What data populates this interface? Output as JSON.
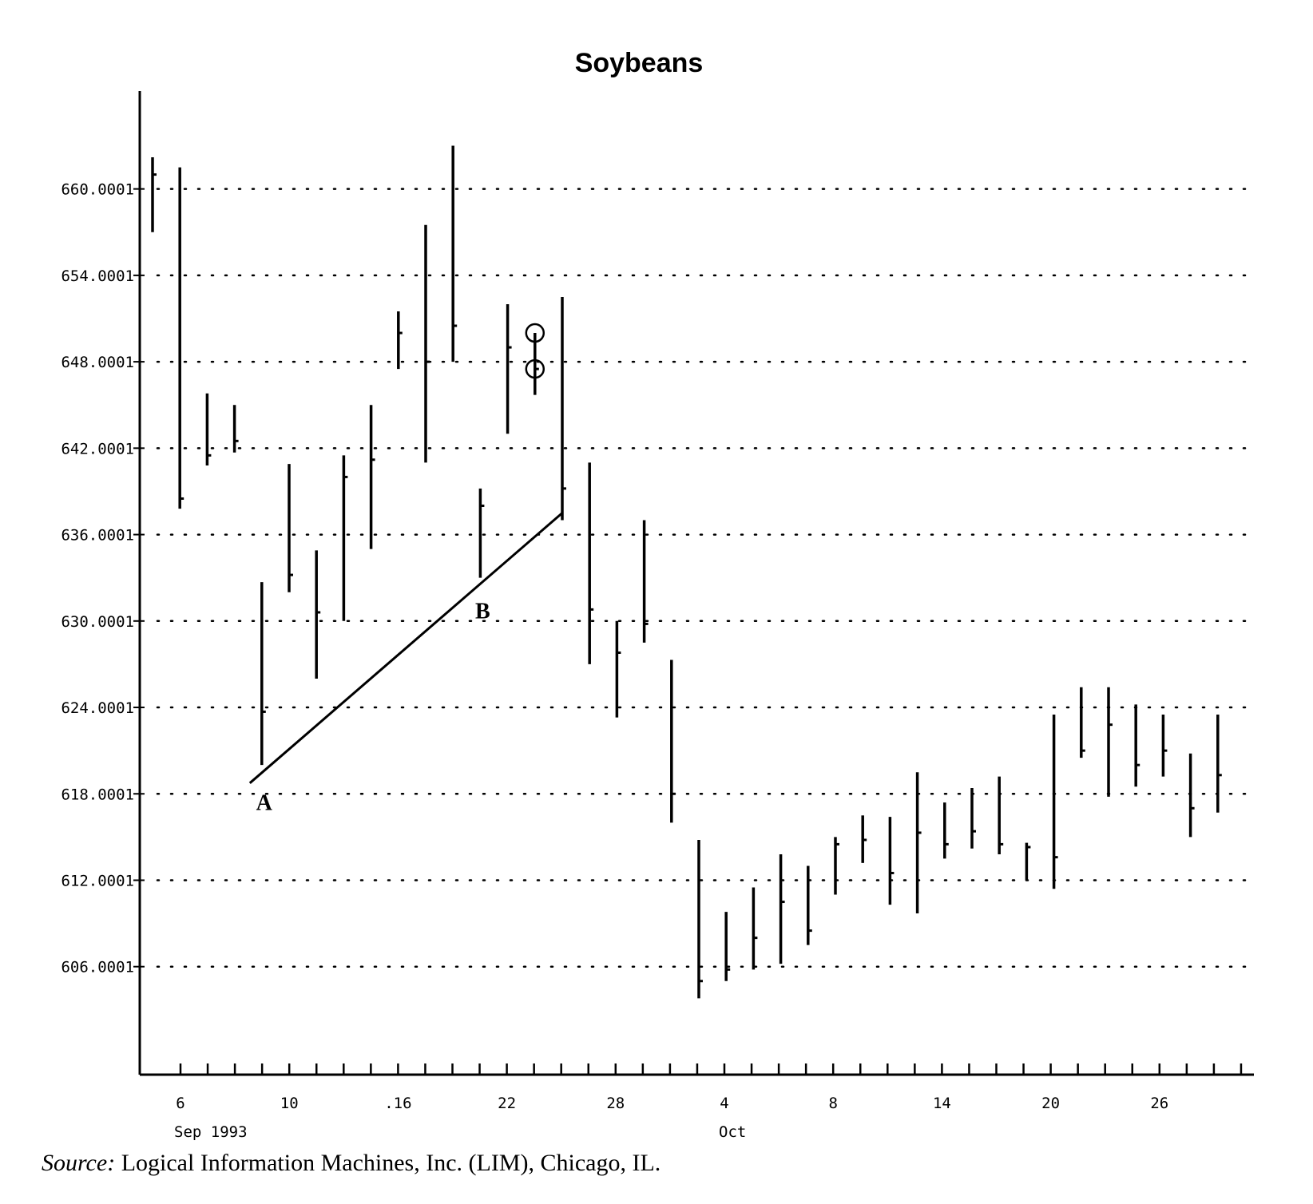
{
  "chart_data": {
    "type": "ohlc",
    "title": "Soybeans",
    "xlabel": "",
    "ylabel": "",
    "y_tick_labels": [
      "660.0001",
      "654.0001",
      "648.0001",
      "642.0001",
      "636.0001",
      "630.0001",
      "624.0001",
      "618.0001",
      "612.0001",
      "606.0001"
    ],
    "y_ticks": [
      660.0001,
      654.0001,
      648.0001,
      642.0001,
      636.0001,
      630.0001,
      624.0001,
      618.0001,
      612.0001,
      606.0001
    ],
    "ylim": [
      598.5,
      666.8
    ],
    "x_tick_labels": [
      "6",
      "10",
      ".16",
      "22",
      "28",
      "4",
      "8",
      "14",
      "20",
      "26"
    ],
    "month_labels": [
      "Sep 1993",
      "Oct"
    ],
    "grid": "horizontal dotted",
    "bars": [
      {
        "high": 662.2,
        "low": 657.0,
        "close": 661.0
      },
      {
        "high": 661.5,
        "low": 637.8,
        "close": 638.5
      },
      {
        "high": 645.8,
        "low": 640.8,
        "close": 641.5
      },
      {
        "high": 645.0,
        "low": 641.7,
        "close": 642.5
      },
      {
        "high": 632.7,
        "low": 620.0,
        "close": 623.7
      },
      {
        "high": 640.9,
        "low": 632.0,
        "close": 633.2
      },
      {
        "high": 634.9,
        "low": 626.0,
        "close": 630.6
      },
      {
        "high": 641.5,
        "low": 630.0,
        "close": 640.0
      },
      {
        "high": 645.0,
        "low": 635.0,
        "close": 641.2
      },
      {
        "high": 651.5,
        "low": 647.5,
        "close": 650.0
      },
      {
        "high": 657.5,
        "low": 641.0,
        "close": 648.0
      },
      {
        "high": 663.0,
        "low": 648.0,
        "close": 650.5
      },
      {
        "high": 639.2,
        "low": 633.0,
        "close": 638.0
      },
      {
        "high": 652.0,
        "low": 643.0,
        "close": 649.0
      },
      {
        "high": 650.0,
        "low": 645.7,
        "close": 647.5
      },
      {
        "high": 652.5,
        "low": 637.0,
        "close": 639.2
      },
      {
        "high": 641.0,
        "low": 627.0,
        "close": 630.8
      },
      {
        "high": 630.0,
        "low": 623.3,
        "close": 627.8
      },
      {
        "high": 637.0,
        "low": 628.5,
        "close": 629.8
      },
      {
        "high": 627.3,
        "low": 616.0,
        "close": 618.0
      },
      {
        "high": 614.8,
        "low": 603.8,
        "close": 605.0
      },
      {
        "high": 609.8,
        "low": 605.0,
        "close": 605.8
      },
      {
        "high": 611.5,
        "low": 605.8,
        "close": 608.0
      },
      {
        "high": 613.8,
        "low": 606.2,
        "close": 610.5
      },
      {
        "high": 613.0,
        "low": 607.5,
        "close": 608.5
      },
      {
        "high": 615.0,
        "low": 611.0,
        "close": 614.5
      },
      {
        "high": 616.5,
        "low": 613.2,
        "close": 614.8
      },
      {
        "high": 616.4,
        "low": 610.3,
        "close": 612.5
      },
      {
        "high": 619.5,
        "low": 609.7,
        "close": 615.3
      },
      {
        "high": 617.4,
        "low": 613.5,
        "close": 614.5
      },
      {
        "high": 618.4,
        "low": 614.2,
        "close": 615.4
      },
      {
        "high": 619.2,
        "low": 613.8,
        "close": 614.5
      },
      {
        "high": 614.6,
        "low": 612.0,
        "close": 614.3
      },
      {
        "high": 623.5,
        "low": 611.4,
        "close": 613.6
      },
      {
        "high": 625.4,
        "low": 620.5,
        "close": 621.0
      },
      {
        "high": 625.4,
        "low": 617.8,
        "close": 622.8
      },
      {
        "high": 624.2,
        "low": 618.5,
        "close": 620.0
      },
      {
        "high": 623.5,
        "low": 619.2,
        "close": 621.0
      },
      {
        "high": 620.8,
        "low": 615.0,
        "close": 617.0
      },
      {
        "high": 623.5,
        "low": 616.7,
        "close": 619.3
      }
    ],
    "trendline": {
      "from": {
        "bar": 4,
        "price": 619.3
      },
      "to": {
        "bar": 15,
        "price": 637.5
      }
    },
    "annotations": [
      {
        "text": "A",
        "bar": 4,
        "price": 618.0
      },
      {
        "text": "B",
        "bar": 12,
        "price": 631.3
      }
    ],
    "circled_points": [
      {
        "bar": 14,
        "price": 650.0
      },
      {
        "bar": 14,
        "price": 647.5
      }
    ]
  },
  "source": {
    "label": "Source:",
    "text": "Logical Information Machines, Inc. (LIM), Chicago, IL."
  }
}
